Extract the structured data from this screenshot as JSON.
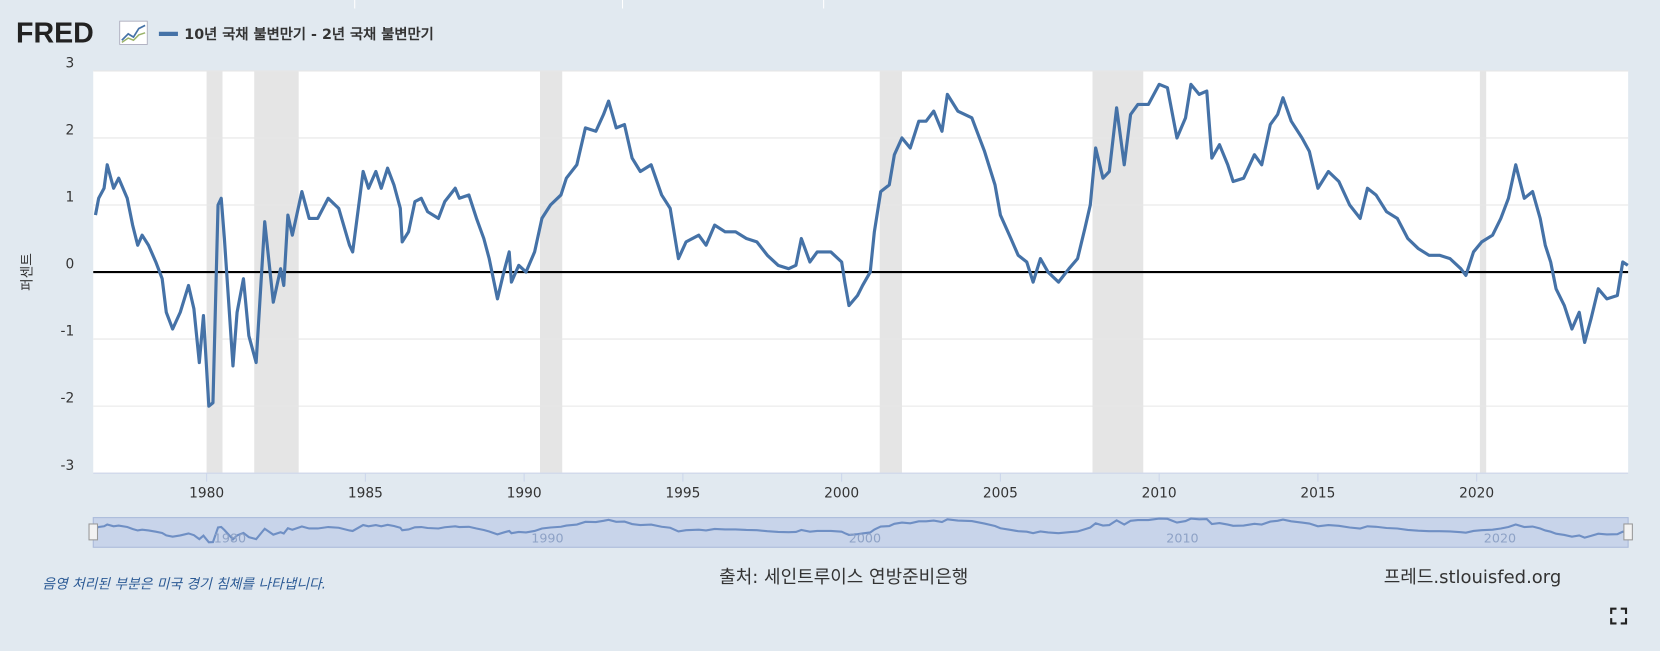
{
  "logo": "FRED",
  "chart_data": {
    "type": "line",
    "title": "10년 국채 불변만기 - 2년 국채 불변만기",
    "y_label": "퍼센트",
    "note": "음영 처리된 부분은 미국 경기 침체를 나타냅니다.",
    "source": "출처: 세인트루이스 연방준비은행",
    "site": "프레드.stlouisfed.org",
    "xlim": [
      1976.43,
      2024.77
    ],
    "ylim": [
      -3,
      3
    ],
    "xticks": [
      1980,
      1985,
      1990,
      1995,
      2000,
      2005,
      2010,
      2015,
      2020
    ],
    "yticks": [
      -3,
      -2,
      -1,
      0,
      1,
      2,
      3
    ],
    "navigator_xticks": [
      1980,
      1990,
      2000,
      2010,
      2020
    ],
    "grid": true,
    "recessions": [
      [
        1980.0,
        1980.5
      ],
      [
        1981.5,
        1982.9
      ],
      [
        1990.5,
        1991.2
      ],
      [
        2001.2,
        2001.9
      ],
      [
        2007.9,
        2009.5
      ],
      [
        2020.1,
        2020.3
      ]
    ],
    "x": [
      1976.5,
      1976.6,
      1976.77,
      1976.87,
      1977.07,
      1977.23,
      1977.5,
      1977.67,
      1977.83,
      1977.97,
      1978.17,
      1978.4,
      1978.6,
      1978.73,
      1978.93,
      1979.17,
      1979.43,
      1979.6,
      1979.77,
      1979.9,
      1980.07,
      1980.2,
      1980.36,
      1980.46,
      1980.56,
      1980.83,
      1980.96,
      1981.16,
      1981.33,
      1981.56,
      1981.83,
      1982.1,
      1982.33,
      1982.43,
      1982.56,
      1982.7,
      1983.0,
      1983.23,
      1983.5,
      1983.83,
      1984.16,
      1984.5,
      1984.6,
      1984.93,
      1985.1,
      1985.33,
      1985.5,
      1985.7,
      1985.9,
      1986.1,
      1986.16,
      1986.36,
      1986.56,
      1986.76,
      1986.96,
      1987.3,
      1987.5,
      1987.83,
      1987.96,
      1988.26,
      1988.5,
      1988.73,
      1988.9,
      1989.16,
      1989.36,
      1989.53,
      1989.6,
      1989.83,
      1990.06,
      1990.33,
      1990.56,
      1990.83,
      1991.16,
      1991.33,
      1991.66,
      1991.93,
      1992.26,
      1992.5,
      1992.66,
      1992.9,
      1993.16,
      1993.4,
      1993.66,
      1994.0,
      1994.33,
      1994.6,
      1994.86,
      1995.1,
      1995.5,
      1995.73,
      1996.0,
      1996.33,
      1996.66,
      1997.0,
      1997.33,
      1997.66,
      1998.0,
      1998.33,
      1998.56,
      1998.73,
      1999.0,
      1999.23,
      1999.66,
      2000.0,
      2000.1,
      2000.23,
      2000.5,
      2000.66,
      2000.9,
      2001.03,
      2001.23,
      2001.5,
      2001.66,
      2001.9,
      2002.16,
      2002.43,
      2002.66,
      2002.9,
      2003.16,
      2003.33,
      2003.66,
      2004.1,
      2004.5,
      2004.83,
      2005.0,
      2005.33,
      2005.56,
      2005.83,
      2006.03,
      2006.26,
      2006.5,
      2006.83,
      2007.16,
      2007.43,
      2007.66,
      2007.83,
      2008.0,
      2008.23,
      2008.43,
      2008.66,
      2008.9,
      2009.1,
      2009.33,
      2009.66,
      2010.0,
      2010.26,
      2010.56,
      2010.83,
      2011.0,
      2011.26,
      2011.5,
      2011.66,
      2011.9,
      2012.16,
      2012.33,
      2012.66,
      2013.0,
      2013.23,
      2013.5,
      2013.73,
      2013.9,
      2014.16,
      2014.5,
      2014.73,
      2015.0,
      2015.33,
      2015.66,
      2016.0,
      2016.33,
      2016.56,
      2016.83,
      2017.16,
      2017.5,
      2017.83,
      2018.16,
      2018.5,
      2018.83,
      2019.16,
      2019.5,
      2019.66,
      2019.9,
      2020.16,
      2020.5,
      2020.76,
      2021.0,
      2021.23,
      2021.5,
      2021.76,
      2022.0,
      2022.16,
      2022.33,
      2022.5,
      2022.76,
      2023.0,
      2023.23,
      2023.4,
      2023.6,
      2023.83,
      2024.1,
      2024.43,
      2024.6,
      2024.76
    ],
    "series": [
      {
        "name": "10년 국채 불변만기 - 2년 국채 불변만기",
        "color": "#4572a7",
        "values": [
          0.85,
          1.1,
          1.25,
          1.6,
          1.25,
          1.4,
          1.1,
          0.7,
          0.4,
          0.55,
          0.4,
          0.15,
          -0.1,
          -0.6,
          -0.85,
          -0.6,
          -0.2,
          -0.55,
          -1.35,
          -0.65,
          -2.0,
          -1.95,
          1.0,
          1.1,
          0.5,
          -1.4,
          -0.6,
          -0.1,
          -0.95,
          -1.35,
          0.75,
          -0.45,
          0.05,
          -0.2,
          0.85,
          0.55,
          1.2,
          0.8,
          0.8,
          1.1,
          0.95,
          0.4,
          0.3,
          1.5,
          1.25,
          1.5,
          1.25,
          1.55,
          1.3,
          0.95,
          0.45,
          0.6,
          1.05,
          1.1,
          0.9,
          0.8,
          1.05,
          1.25,
          1.1,
          1.15,
          0.8,
          0.5,
          0.2,
          -0.4,
          0.0,
          0.3,
          -0.15,
          0.1,
          0.0,
          0.3,
          0.8,
          1.0,
          1.15,
          1.4,
          1.6,
          2.15,
          2.1,
          2.35,
          2.55,
          2.15,
          2.2,
          1.7,
          1.5,
          1.6,
          1.15,
          0.95,
          0.2,
          0.45,
          0.55,
          0.4,
          0.7,
          0.6,
          0.6,
          0.5,
          0.45,
          0.25,
          0.1,
          0.05,
          0.1,
          0.5,
          0.15,
          0.3,
          0.3,
          0.15,
          -0.15,
          -0.5,
          -0.35,
          -0.2,
          0.0,
          0.6,
          1.2,
          1.3,
          1.75,
          2.0,
          1.85,
          2.25,
          2.25,
          2.4,
          2.1,
          2.65,
          2.4,
          2.3,
          1.8,
          1.3,
          0.85,
          0.5,
          0.25,
          0.15,
          -0.15,
          0.2,
          0.0,
          -0.15,
          0.05,
          0.2,
          0.65,
          1.0,
          1.85,
          1.4,
          1.5,
          2.45,
          1.6,
          2.35,
          2.5,
          2.5,
          2.8,
          2.75,
          2.0,
          2.3,
          2.8,
          2.65,
          2.7,
          1.7,
          1.9,
          1.6,
          1.35,
          1.4,
          1.75,
          1.6,
          2.2,
          2.35,
          2.6,
          2.25,
          2.0,
          1.8,
          1.25,
          1.5,
          1.35,
          1.0,
          0.8,
          1.25,
          1.15,
          0.9,
          0.8,
          0.5,
          0.35,
          0.25,
          0.25,
          0.2,
          0.05,
          -0.05,
          0.3,
          0.45,
          0.55,
          0.8,
          1.1,
          1.6,
          1.1,
          1.2,
          0.8,
          0.4,
          0.15,
          -0.25,
          -0.5,
          -0.85,
          -0.6,
          -1.05,
          -0.7,
          -0.25,
          -0.4,
          -0.35,
          0.15,
          0.1
        ]
      }
    ]
  }
}
